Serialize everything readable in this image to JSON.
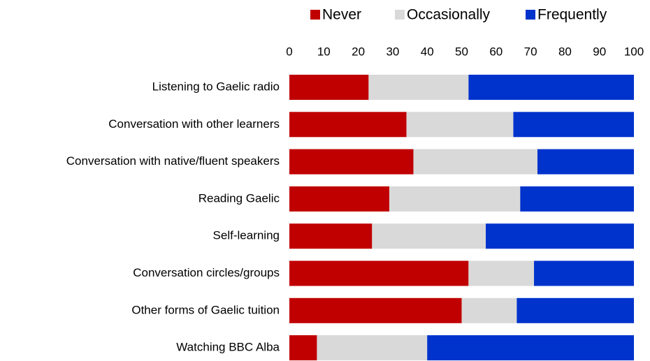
{
  "chart_data": {
    "type": "stacked_barh",
    "categories": [
      "Listening to Gaelic radio",
      "Conversation with other learners",
      "Conversation with native/fluent speakers",
      "Reading Gaelic",
      "Self-learning",
      "Conversation circles/groups",
      "Other forms of Gaelic tuition",
      "Watching BBC Alba"
    ],
    "series": [
      {
        "name": "Never",
        "color": "#c00000",
        "values": [
          23,
          34,
          36,
          29,
          24,
          52,
          50,
          8
        ]
      },
      {
        "name": "Occasionally",
        "color": "#d9d9d9",
        "values": [
          29,
          31,
          36,
          38,
          33,
          19,
          16,
          32
        ]
      },
      {
        "name": "Frequently",
        "color": "#0033cc",
        "values": [
          48,
          35,
          28,
          33,
          43,
          29,
          34,
          60
        ]
      }
    ],
    "xlim": [
      0,
      100
    ],
    "xticks": [
      0,
      10,
      20,
      30,
      40,
      50,
      60,
      70,
      80,
      90,
      100
    ],
    "grid": false,
    "legend": "top"
  }
}
